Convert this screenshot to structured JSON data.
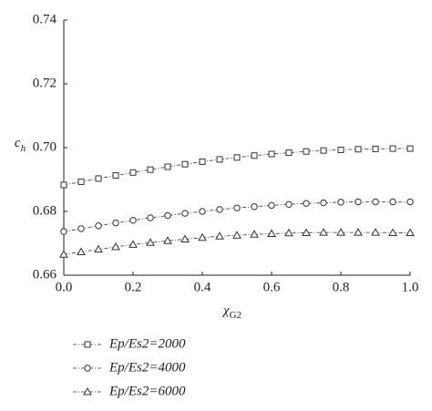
{
  "chart_data": {
    "type": "line",
    "ylabel": {
      "base": "c",
      "sub": "h"
    },
    "xlabel": {
      "base": "χ",
      "sub": "G2"
    },
    "x": [
      0,
      0.05,
      0.1,
      0.15,
      0.2,
      0.25,
      0.3,
      0.35,
      0.4,
      0.45,
      0.5,
      0.55,
      0.6,
      0.65,
      0.7,
      0.75,
      0.8,
      0.85,
      0.9,
      0.95,
      1.0
    ],
    "series": [
      {
        "name": "Ep/Es2=2000",
        "color": "#333333",
        "marker": "square",
        "values": [
          0.6883,
          0.6893,
          0.6903,
          0.6913,
          0.6922,
          0.6931,
          0.694,
          0.6948,
          0.6956,
          0.6963,
          0.6969,
          0.6975,
          0.698,
          0.6984,
          0.6988,
          0.6991,
          0.6993,
          0.6995,
          0.6996,
          0.6997,
          0.6997
        ]
      },
      {
        "name": "Ep/Es2=4000",
        "color": "#333333",
        "marker": "circle",
        "values": [
          0.6737,
          0.6746,
          0.6755,
          0.6764,
          0.6772,
          0.678,
          0.6787,
          0.6794,
          0.68,
          0.6806,
          0.6811,
          0.6815,
          0.6819,
          0.6822,
          0.6825,
          0.6827,
          0.6829,
          0.683,
          0.683,
          0.683,
          0.683
        ]
      },
      {
        "name": "Ep/Es2=6000",
        "color": "#333333",
        "marker": "triangle",
        "values": [
          0.6665,
          0.6673,
          0.6681,
          0.6689,
          0.6696,
          0.6702,
          0.6708,
          0.6713,
          0.6718,
          0.6722,
          0.6725,
          0.6728,
          0.673,
          0.6732,
          0.6733,
          0.6734,
          0.6734,
          0.6734,
          0.6734,
          0.6733,
          0.6733
        ]
      }
    ],
    "xlim": [
      0,
      1.0
    ],
    "xticks": [
      {
        "value": 0,
        "label": "0.0"
      },
      0.2,
      0.4,
      0.6,
      0.8,
      {
        "value": 1.0,
        "label": "1.0"
      }
    ],
    "ylim": [
      0.66,
      0.74
    ],
    "yticks": [
      0.66,
      0.68,
      {
        "value": 0.7,
        "label": "0.70"
      },
      0.72,
      0.74
    ],
    "grid": false
  }
}
